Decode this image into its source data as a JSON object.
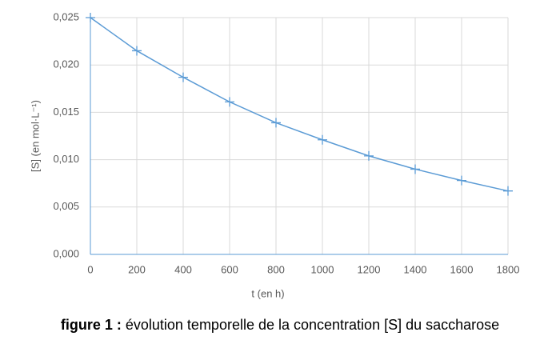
{
  "chart_data": {
    "type": "line",
    "x_label": "t (en h)",
    "y_label": "[S] (en mol·L⁻¹)",
    "x": [
      0,
      200,
      400,
      600,
      800,
      1000,
      1200,
      1400,
      1600,
      1800
    ],
    "series": [
      {
        "name": "[S]",
        "color": "#5b9bd5",
        "values": [
          0.025,
          0.0215,
          0.0187,
          0.0161,
          0.0139,
          0.0121,
          0.0104,
          0.009,
          0.0078,
          0.0067
        ]
      }
    ],
    "xlim": [
      0,
      1800
    ],
    "xticks": [
      0,
      200,
      400,
      600,
      800,
      1000,
      1200,
      1400,
      1600,
      1800
    ],
    "ylim": [
      0,
      0.025
    ],
    "yticks": [
      {
        "value": 0,
        "label": "0,000"
      },
      {
        "value": 0.005,
        "label": "0,005"
      },
      {
        "value": 0.01,
        "label": "0,010"
      },
      {
        "value": 0.015,
        "label": "0,015"
      },
      {
        "value": 0.02,
        "label": "0,020"
      },
      {
        "value": 0.025,
        "label": "0,025"
      }
    ],
    "grid": true,
    "legend": false
  },
  "caption": {
    "label": "figure 1 :",
    "text": "évolution temporelle de la concentration [S] du saccharose"
  }
}
